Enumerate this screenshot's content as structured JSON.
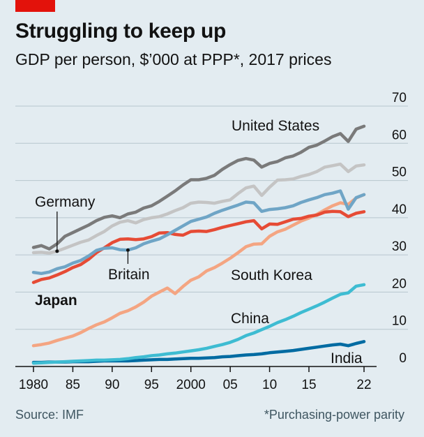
{
  "header": {
    "title": "Struggling to keep up",
    "subtitle": "GDP per person, $’000 at PPP*, 2017 prices"
  },
  "footer": {
    "source": "Source: IMF",
    "footnote": "*Purchasing-power parity"
  },
  "colors": {
    "background": "#e3ecf1",
    "brand_red": "#e3120b",
    "grid": "#b7c6ce",
    "axis": "#121212"
  },
  "chart_data": {
    "type": "line",
    "title": "Struggling to keep up",
    "ylabel": "GDP per person, $’000 at PPP*, 2017 prices",
    "xlabel": "",
    "ylim": [
      0,
      70
    ],
    "xlim": [
      1980,
      2022
    ],
    "y_ticks": [
      0,
      10,
      20,
      30,
      40,
      50,
      60,
      70
    ],
    "y_tick_labels": [
      "0",
      "10",
      "20",
      "30",
      "40",
      "50",
      "60",
      "70"
    ],
    "x_ticks": [
      1980,
      1985,
      1990,
      1995,
      2000,
      2005,
      2010,
      2015,
      2022
    ],
    "x_tick_labels": [
      "1980",
      "85",
      "90",
      "95",
      "2000",
      "05",
      "10",
      "15",
      "22"
    ],
    "grid": true,
    "series": [
      {
        "name": "United States",
        "label": "United States",
        "color": "#7a7a7a",
        "x": [
          1980,
          1981,
          1982,
          1983,
          1984,
          1985,
          1986,
          1987,
          1988,
          1989,
          1990,
          1991,
          1992,
          1993,
          1994,
          1995,
          1996,
          1997,
          1998,
          1999,
          2000,
          2001,
          2002,
          2003,
          2004,
          2005,
          2006,
          2007,
          2008,
          2009,
          2010,
          2011,
          2012,
          2013,
          2014,
          2015,
          2016,
          2017,
          2018,
          2019,
          2020,
          2021,
          2022
        ],
        "values": [
          32,
          32.5,
          31.6,
          33,
          35,
          36,
          37,
          38,
          39.2,
          40.1,
          40.5,
          40,
          41,
          41.5,
          42.6,
          43.2,
          44.4,
          45.8,
          47.2,
          48.8,
          50.2,
          50.2,
          50.6,
          51.4,
          53,
          54.3,
          55.4,
          55.9,
          55.5,
          53.6,
          54.6,
          55.1,
          56.1,
          56.6,
          57.6,
          58.9,
          59.5,
          60.6,
          61.8,
          62.6,
          60.5,
          63.8,
          64.6
        ]
      },
      {
        "name": "Germany",
        "label": "Germany",
        "color": "#c4c4c4",
        "x": [
          1980,
          1981,
          1982,
          1983,
          1984,
          1985,
          1986,
          1987,
          1988,
          1989,
          1990,
          1991,
          1992,
          1993,
          1994,
          1995,
          1996,
          1997,
          1998,
          1999,
          2000,
          2001,
          2002,
          2003,
          2004,
          2005,
          2006,
          2007,
          2008,
          2009,
          2010,
          2011,
          2012,
          2013,
          2014,
          2015,
          2016,
          2017,
          2018,
          2019,
          2020,
          2021,
          2022
        ],
        "values": [
          30.6,
          30.7,
          30.5,
          31,
          31.8,
          32.6,
          33.4,
          34,
          35.2,
          36.3,
          37.8,
          38.8,
          39.2,
          38.6,
          39.5,
          40,
          40.3,
          41,
          41.9,
          42.7,
          43.9,
          44.2,
          44.1,
          43.9,
          44.4,
          44.8,
          46.5,
          48,
          48.5,
          46,
          48.2,
          50.1,
          50.2,
          50.4,
          51.1,
          51.6,
          52.4,
          53.6,
          54,
          54.4,
          52.4,
          53.9,
          54.2
        ]
      },
      {
        "name": "Britain",
        "label": "Britain",
        "color": "#6fa5c6",
        "x": [
          1980,
          1981,
          1982,
          1983,
          1984,
          1985,
          1986,
          1987,
          1988,
          1989,
          1990,
          1991,
          1992,
          1993,
          1994,
          1995,
          1996,
          1997,
          1998,
          1999,
          2000,
          2001,
          2002,
          2003,
          2004,
          2005,
          2006,
          2007,
          2008,
          2009,
          2010,
          2011,
          2012,
          2013,
          2014,
          2015,
          2016,
          2017,
          2018,
          2019,
          2020,
          2021,
          2022
        ],
        "values": [
          25.3,
          25,
          25.4,
          26.3,
          26.8,
          27.8,
          28.5,
          29.7,
          31.2,
          31.8,
          31.9,
          31.4,
          31.3,
          31.9,
          33,
          33.7,
          34.3,
          35.4,
          36.6,
          37.8,
          39,
          39.6,
          40.2,
          41.2,
          42,
          42.7,
          43.4,
          44.2,
          44,
          41.7,
          42.2,
          42.4,
          42.7,
          43.2,
          44.1,
          44.8,
          45.4,
          46.2,
          46.6,
          47.2,
          42.3,
          45.4,
          46.2
        ]
      },
      {
        "name": "Japan",
        "label": "Japan",
        "color": "#e64b35",
        "x": [
          1980,
          1981,
          1982,
          1983,
          1984,
          1985,
          1986,
          1987,
          1988,
          1989,
          1990,
          1991,
          1992,
          1993,
          1994,
          1995,
          1996,
          1997,
          1998,
          1999,
          2000,
          2001,
          2002,
          2003,
          2004,
          2005,
          2006,
          2007,
          2008,
          2009,
          2010,
          2011,
          2012,
          2013,
          2014,
          2015,
          2016,
          2017,
          2018,
          2019,
          2020,
          2021,
          2022
        ],
        "values": [
          22.6,
          23.4,
          23.8,
          24.6,
          25.5,
          26.6,
          27.4,
          28.8,
          30.6,
          31.9,
          33.3,
          34.2,
          34.3,
          34.1,
          34.3,
          34.9,
          35.9,
          36,
          35.5,
          35.3,
          36.3,
          36.4,
          36.3,
          36.8,
          37.4,
          37.9,
          38.4,
          38.9,
          39.2,
          37,
          38.3,
          38.2,
          38.9,
          39.6,
          39.8,
          40.4,
          40.7,
          41.5,
          41.7,
          41.6,
          40.3,
          41.2,
          41.6
        ]
      },
      {
        "name": "South Korea",
        "label": "South Korea",
        "color": "#f4a582",
        "x": [
          1980,
          1981,
          1982,
          1983,
          1984,
          1985,
          1986,
          1987,
          1988,
          1989,
          1990,
          1991,
          1992,
          1993,
          1994,
          1995,
          1996,
          1997,
          1998,
          1999,
          2000,
          2001,
          2002,
          2003,
          2004,
          2005,
          2006,
          2007,
          2008,
          2009,
          2010,
          2011,
          2012,
          2013,
          2014,
          2015,
          2016,
          2017,
          2018,
          2019,
          2020,
          2021,
          2022
        ],
        "values": [
          5.6,
          5.9,
          6.3,
          7,
          7.6,
          8.2,
          9.1,
          10.2,
          11.2,
          12,
          13.1,
          14.3,
          15,
          16,
          17.3,
          18.9,
          20,
          21.1,
          19.6,
          21.5,
          23.2,
          24.1,
          25.7,
          26.6,
          27.8,
          29.1,
          30.6,
          32.2,
          32.9,
          33,
          35,
          36.2,
          36.9,
          38,
          39.1,
          39.9,
          40.9,
          42.1,
          43.2,
          44,
          43.6,
          45.3,
          46.2
        ]
      },
      {
        "name": "China",
        "label": "China",
        "color": "#3ebcd2",
        "x": [
          1980,
          1981,
          1982,
          1983,
          1984,
          1985,
          1986,
          1987,
          1988,
          1989,
          1990,
          1991,
          1992,
          1993,
          1994,
          1995,
          1996,
          1997,
          1998,
          1999,
          2000,
          2001,
          2002,
          2003,
          2004,
          2005,
          2006,
          2007,
          2008,
          2009,
          2010,
          2011,
          2012,
          2013,
          2014,
          2015,
          2016,
          2017,
          2018,
          2019,
          2020,
          2021,
          2022
        ],
        "values": [
          0.9,
          1,
          1.1,
          1.2,
          1.3,
          1.4,
          1.5,
          1.6,
          1.7,
          1.7,
          1.8,
          1.9,
          2.1,
          2.4,
          2.6,
          2.9,
          3.1,
          3.4,
          3.6,
          3.9,
          4.2,
          4.5,
          4.9,
          5.4,
          5.9,
          6.5,
          7.3,
          8.3,
          9,
          9.9,
          10.8,
          11.8,
          12.6,
          13.5,
          14.5,
          15.4,
          16.3,
          17.3,
          18.4,
          19.4,
          19.8,
          21.6,
          22
        ]
      },
      {
        "name": "India",
        "label": "India",
        "color": "#006ba2",
        "x": [
          1980,
          1981,
          1982,
          1983,
          1984,
          1985,
          1986,
          1987,
          1988,
          1989,
          1990,
          1991,
          1992,
          1993,
          1994,
          1995,
          1996,
          1997,
          1998,
          1999,
          2000,
          2001,
          2002,
          2003,
          2004,
          2005,
          2006,
          2007,
          2008,
          2009,
          2010,
          2011,
          2012,
          2013,
          2014,
          2015,
          2016,
          2017,
          2018,
          2019,
          2020,
          2021,
          2022
        ],
        "values": [
          1.1,
          1.1,
          1.2,
          1.2,
          1.2,
          1.3,
          1.3,
          1.3,
          1.4,
          1.5,
          1.5,
          1.5,
          1.5,
          1.6,
          1.7,
          1.8,
          1.9,
          1.9,
          2,
          2.1,
          2.2,
          2.2,
          2.3,
          2.4,
          2.6,
          2.7,
          2.9,
          3.1,
          3.2,
          3.4,
          3.7,
          3.9,
          4.1,
          4.3,
          4.6,
          4.9,
          5.2,
          5.5,
          5.8,
          6,
          5.6,
          6.2,
          6.7
        ]
      }
    ]
  }
}
